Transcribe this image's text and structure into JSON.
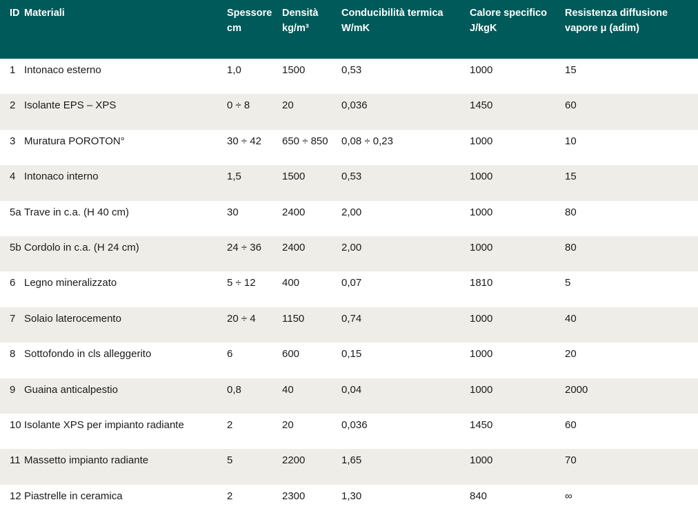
{
  "header": {
    "id": "ID",
    "materiali": "Materiali",
    "spessore": [
      "Spessore",
      "cm"
    ],
    "densita": [
      "Densità",
      "kg/m³"
    ],
    "conducibilita": [
      "Conducibilità termica",
      "W/mK"
    ],
    "calore": [
      "Calore specifico",
      "J/kgK"
    ],
    "resistenza": [
      "Resistenza diffusione",
      "vapore μ (adim)"
    ]
  },
  "rows": [
    {
      "id": "1",
      "materiale": "Intonaco esterno",
      "spessore": "1,0",
      "densita": "1500",
      "conducibilita": "0,53",
      "calore": "1000",
      "resistenza": "15"
    },
    {
      "id": "2",
      "materiale": "Isolante EPS – XPS",
      "spessore": "0 ÷ 8",
      "densita": "20",
      "conducibilita": "0,036",
      "calore": "1450",
      "resistenza": "60"
    },
    {
      "id": "3",
      "materiale": "Muratura POROTON°",
      "spessore": "30 ÷ 42",
      "densita": "650 ÷ 850",
      "conducibilita": "0,08 ÷ 0,23",
      "calore": "1000",
      "resistenza": "10"
    },
    {
      "id": "4",
      "materiale": "Intonaco interno",
      "spessore": "1,5",
      "densita": "1500",
      "conducibilita": "0,53",
      "calore": "1000",
      "resistenza": "15"
    },
    {
      "id": "5a",
      "materiale": "Trave in c.a. (H 40 cm)",
      "spessore": "30",
      "densita": "2400",
      "conducibilita": "2,00",
      "calore": "1000",
      "resistenza": "80"
    },
    {
      "id": "5b",
      "materiale": "Cordolo in c.a. (H 24 cm)",
      "spessore": "24 ÷ 36",
      "densita": "2400",
      "conducibilita": "2,00",
      "calore": "1000",
      "resistenza": "80"
    },
    {
      "id": "6",
      "materiale": "Legno mineralizzato",
      "spessore": "5 ÷ 12",
      "densita": "400",
      "conducibilita": "0,07",
      "calore": "1810",
      "resistenza": "5"
    },
    {
      "id": "7",
      "materiale": "Solaio laterocemento",
      "spessore": "20 ÷ 4",
      "densita": "1150",
      "conducibilita": "0,74",
      "calore": "1000",
      "resistenza": "40"
    },
    {
      "id": "8",
      "materiale": "Sottofondo in cls alleggerito",
      "spessore": "6",
      "densita": "600",
      "conducibilita": "0,15",
      "calore": "1000",
      "resistenza": "20"
    },
    {
      "id": "9",
      "materiale": "Guaina anticalpestio",
      "spessore": "0,8",
      "densita": "40",
      "conducibilita": "0,04",
      "calore": "1000",
      "resistenza": "2000"
    },
    {
      "id": "10",
      "materiale": "Isolante XPS per impianto radiante",
      "spessore": "2",
      "densita": "20",
      "conducibilita": "0,036",
      "calore": "1450",
      "resistenza": "60"
    },
    {
      "id": "11",
      "materiale": "Massetto impianto radiante",
      "spessore": "5",
      "densita": "2200",
      "conducibilita": "1,65",
      "calore": "1000",
      "resistenza": "70"
    },
    {
      "id": "12",
      "materiale": "Piastrelle in ceramica",
      "spessore": "2",
      "densita": "2300",
      "conducibilita": "1,30",
      "calore": "840",
      "resistenza": "∞"
    }
  ],
  "colors": {
    "header_bg": "#005a5a",
    "alt_row_bg": "#eeede8"
  }
}
